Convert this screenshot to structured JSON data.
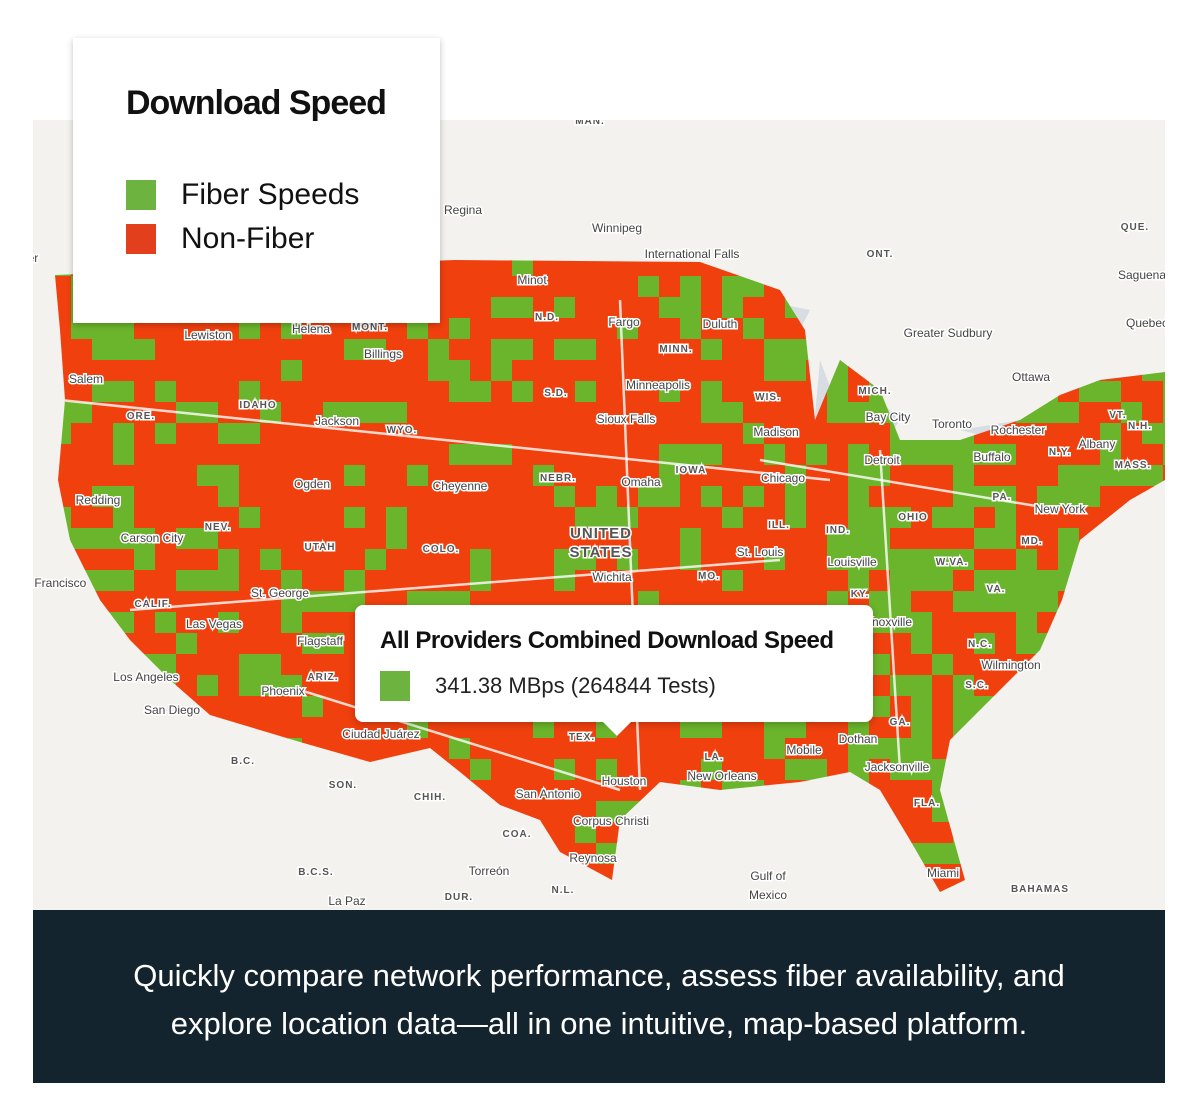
{
  "legend": {
    "title": "Download Speed",
    "items": [
      "Fiber Speeds",
      "Non-Fiber"
    ]
  },
  "tooltip": {
    "title": "All Providers Combined Download Speed",
    "value": "341.38 MBps (264844 Tests)"
  },
  "caption": "Quickly compare network performance, assess fiber availability, and explore location data—all in one intuitive, map-based platform.",
  "map": {
    "labels": [
      "MAN.",
      "ONT.",
      "QUE.",
      "Regina",
      "Winnipeg",
      "International Falls",
      "Saguenay",
      "Quebec",
      "Greater Sudbury",
      "Ottawa",
      "Vancouver",
      "Minot",
      "N.D.",
      "Fargo",
      "Duluth",
      "MINN.",
      "MONT.",
      "Helena",
      "Lewiston",
      "Billings",
      "Salem",
      "Minneapolis",
      "S.D.",
      "WIS.",
      "MICH.",
      "Bay City",
      "ORE.",
      "IDAHO",
      "Jackson",
      "WYO.",
      "Sioux Falls",
      "Madison",
      "Toronto",
      "Rochester",
      "Buffalo",
      "Albany",
      "N.Y.",
      "VT.",
      "N.H.",
      "MASS.",
      "IOWA",
      "NEBR.",
      "Omaha",
      "Cheyenne",
      "Ogden",
      "Redding",
      "Chicago",
      "Detroit",
      "PA.",
      "New York",
      "OHIO",
      "NEV.",
      "Carson City",
      "UTAH",
      "COLO.",
      "UNITED STATES",
      "ILL.",
      "IND.",
      "MD.",
      "St. Louis",
      "Louisville",
      "W.VA.",
      "Wichita",
      "MO.",
      "San Francisco",
      "CALIF.",
      "St. George",
      "KY.",
      "VA.",
      "Las Vegas",
      "Knoxville",
      "Flagstaff",
      "N.C.",
      "Wilmington",
      "Los Angeles",
      "ARIZ.",
      "Phoenix",
      "S.C.",
      "San Diego",
      "GA.",
      "Ciudad Juárez",
      "TEX.",
      "Dothan",
      "LA.",
      "Mobile",
      "B.C.",
      "Houston",
      "New Orleans",
      "Jacksonville",
      "SON.",
      "CHIH.",
      "San Antonio",
      "FLA.",
      "Corpus Christi",
      "COA.",
      "Reynosa",
      "Torreón",
      "Gulf of Mexico",
      "Miami",
      "B.C.S.",
      "N.L.",
      "BAHAMAS",
      "DUR.",
      "La Paz"
    ]
  }
}
